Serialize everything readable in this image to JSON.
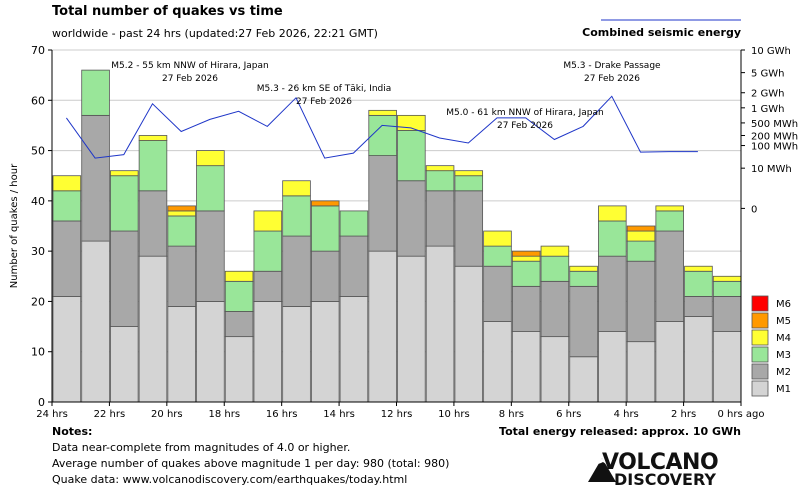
{
  "header": {
    "title": "Total number of quakes vs time",
    "subtitle": "worldwide - past 24 hrs (updated:27 Feb 2026, 22:21 GMT)",
    "energy_legend": "Combined seismic energy"
  },
  "colors": {
    "M1": "#d4d4d4",
    "M2": "#a8a8a8",
    "M3": "#99e699",
    "M4": "#ffff33",
    "M5": "#ff9900",
    "M6": "#ff0000",
    "energy_line": "#1f36c8",
    "grid": "#cccccc"
  },
  "chart_data": {
    "type": "bar",
    "stacked": true,
    "title": "Total number of quakes vs time",
    "ylabel": "Number of quakes / hour",
    "ylim": [
      0,
      70
    ],
    "y_ticks": [
      0,
      10,
      20,
      30,
      40,
      50,
      60,
      70
    ],
    "x_tick_labels": [
      "24 hrs",
      "22 hrs",
      "20 hrs",
      "18 hrs",
      "16 hrs",
      "14 hrs",
      "12 hrs",
      "10 hrs",
      "8 hrs",
      "6 hrs",
      "4 hrs",
      "2 hrs",
      "0 hrs ago"
    ],
    "series": [
      {
        "name": "M1",
        "values": [
          21,
          32,
          15,
          29,
          19,
          20,
          13,
          20,
          19,
          20,
          21,
          30,
          29,
          31,
          27,
          16,
          14,
          13,
          9,
          14,
          12,
          16,
          17,
          14
        ]
      },
      {
        "name": "M2",
        "values": [
          15,
          25,
          19,
          13,
          12,
          18,
          5,
          6,
          14,
          10,
          12,
          19,
          15,
          11,
          15,
          11,
          9,
          11,
          14,
          15,
          16,
          18,
          4,
          7
        ]
      },
      {
        "name": "M3",
        "values": [
          6,
          9,
          11,
          10,
          6,
          9,
          6,
          8,
          8,
          9,
          5,
          8,
          10,
          4,
          3,
          4,
          5,
          5,
          3,
          7,
          4,
          4,
          5,
          3
        ]
      },
      {
        "name": "M4",
        "values": [
          3,
          0,
          1,
          1,
          1,
          3,
          2,
          4,
          3,
          0,
          0,
          1,
          3,
          1,
          1,
          3,
          1,
          2,
          1,
          3,
          2,
          1,
          1,
          1
        ]
      },
      {
        "name": "M5",
        "values": [
          0,
          0,
          0,
          0,
          1,
          0,
          0,
          0,
          0,
          1,
          0,
          0,
          0,
          0,
          0,
          0,
          1,
          0,
          0,
          0,
          1,
          0,
          0,
          0
        ]
      },
      {
        "name": "M6",
        "values": [
          0,
          0,
          0,
          0,
          0,
          0,
          0,
          0,
          0,
          0,
          0,
          0,
          0,
          0,
          0,
          0,
          0,
          0,
          0,
          0,
          0,
          0,
          0,
          0
        ]
      }
    ],
    "legend": [
      "M6",
      "M5",
      "M4",
      "M3",
      "M2",
      "M1"
    ],
    "energy_axis_labels": [
      "10 GWh",
      "5 GWh",
      "2 GWh",
      "1 GWh",
      "500 MWh",
      "200 MWh",
      "100 MWh",
      "10 MWh",
      "0"
    ],
    "energy_axis_on_left_scale": [
      70,
      65.5,
      61.5,
      58.5,
      55.5,
      53,
      51,
      46.5,
      38.5
    ],
    "energy_line_on_left_scale": [
      56.5,
      48.5,
      49.2,
      59.3,
      53.8,
      56.2,
      57.8,
      54.8,
      60.5,
      48.5,
      49.5,
      55,
      54.5,
      52.5,
      51.5,
      56.5,
      56.5,
      52.2,
      54.8,
      60.8,
      49.7,
      49.8,
      49.8
    ],
    "annotations": [
      {
        "line1": "M5.2 - 55 km NNW of Hirara, Japan",
        "line2": "27 Feb 2026",
        "hour": 20
      },
      {
        "line1": "M5.3 - 26 km SE of Tāki, India",
        "line2": "27 Feb 2026",
        "hour": 14
      },
      {
        "line1": "M5.0 - 61 km NNW of Hirara, Japan",
        "line2": "27 Feb 2026",
        "hour": 8
      },
      {
        "line1": "M5.3 - Drake Passage",
        "line2": "27 Feb 2026",
        "hour": 4
      }
    ]
  },
  "notes": {
    "title": "Notes:",
    "line1": "Data near-complete from magnitudes of 4.0 or higher.",
    "line2": "Average number of quakes above magnitude 1 per day: 980 (total: 980)",
    "line3": "Quake data: www.volcanodiscovery.com/earthquakes/today.html",
    "total_energy": "Total energy released: approx. 10 GWh"
  },
  "logo": {
    "line1": "VOLCANO",
    "line2": "DISCOVERY"
  }
}
